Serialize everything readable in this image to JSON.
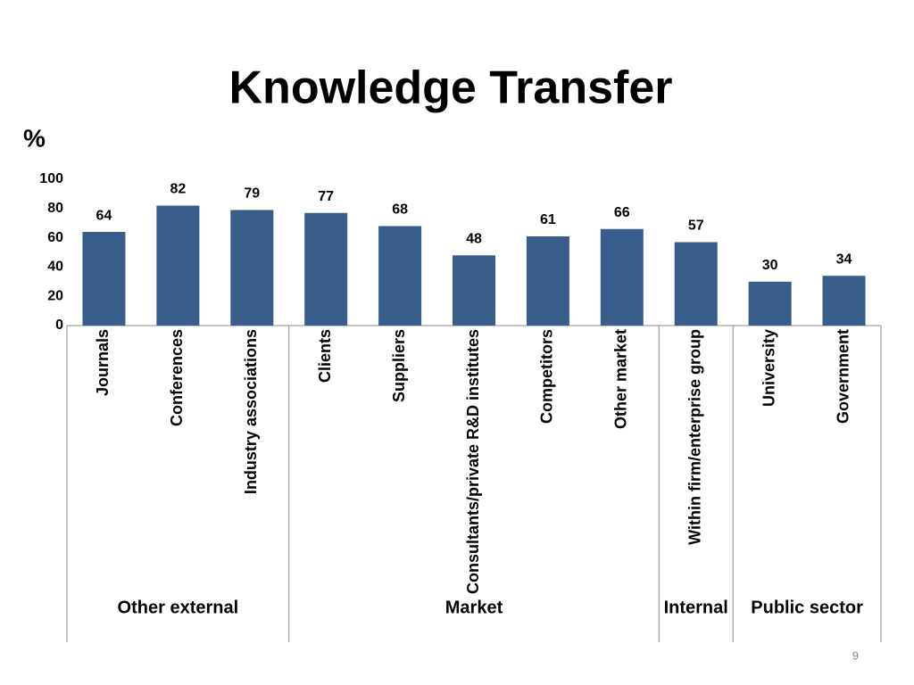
{
  "chart_data": {
    "type": "bar",
    "title": "Knowledge Transfer",
    "y_label": "%",
    "categories": [
      "Journals",
      "Conferences",
      "Industry associations",
      "Clients",
      "Suppliers",
      "Consultants/private R&D institutes",
      "Competitors",
      "Other market",
      "Within firm/enterprise group",
      "University",
      "Government"
    ],
    "values": [
      64,
      82,
      79,
      77,
      68,
      48,
      61,
      66,
      57,
      30,
      34
    ],
    "groups": [
      {
        "label": "Other external",
        "count": 3
      },
      {
        "label": "Market",
        "count": 5
      },
      {
        "label": "Internal",
        "count": 1
      },
      {
        "label": "Public sector",
        "count": 2
      }
    ],
    "color": "#385d8a",
    "ylim": [
      0,
      100
    ],
    "yticks": [
      0,
      20,
      40,
      60,
      80,
      100
    ],
    "grid": false
  },
  "page_number": "9"
}
